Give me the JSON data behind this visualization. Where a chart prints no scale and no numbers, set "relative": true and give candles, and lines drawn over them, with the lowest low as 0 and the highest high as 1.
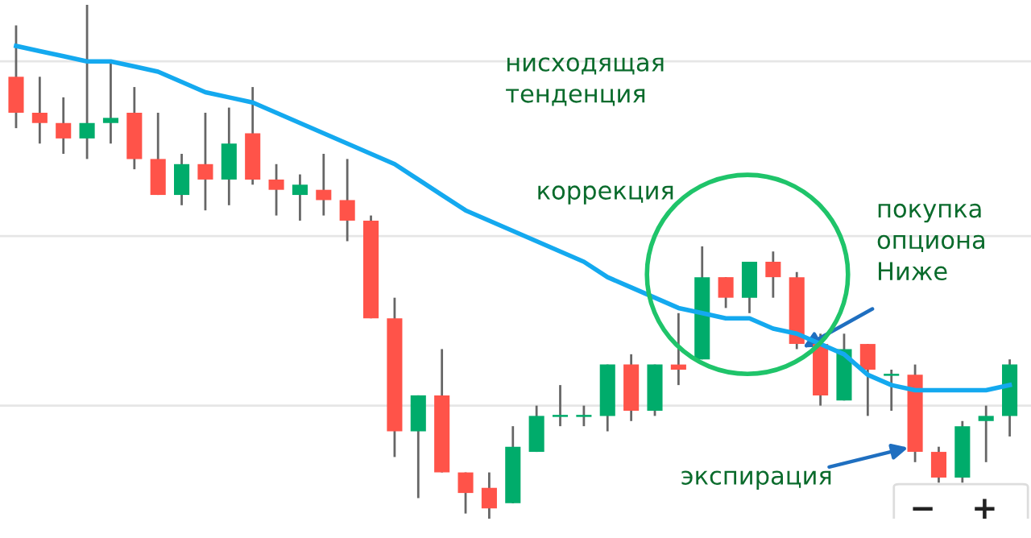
{
  "chart_data": {
    "type": "candlestick",
    "relative": true,
    "grid": true,
    "categories": [
      null,
      null,
      null,
      null,
      null,
      null,
      null,
      null,
      null,
      null,
      null,
      null,
      null,
      null,
      null,
      null,
      null,
      null,
      null,
      null,
      null,
      null,
      null,
      null,
      null,
      null,
      null,
      null,
      null,
      null,
      null,
      null,
      null,
      null,
      null,
      null,
      null,
      null,
      null,
      null,
      null,
      null,
      null
    ],
    "ohlc": [
      [
        0.86,
        0.96,
        0.76,
        0.79
      ],
      [
        0.79,
        0.86,
        0.73,
        0.77
      ],
      [
        0.77,
        0.82,
        0.71,
        0.74
      ],
      [
        0.74,
        1.0,
        0.7,
        0.77
      ],
      [
        0.77,
        0.89,
        0.73,
        0.78
      ],
      [
        0.79,
        0.84,
        0.68,
        0.7
      ],
      [
        0.7,
        0.79,
        0.63,
        0.63
      ],
      [
        0.63,
        0.71,
        0.61,
        0.69
      ],
      [
        0.69,
        0.79,
        0.6,
        0.66
      ],
      [
        0.66,
        0.8,
        0.61,
        0.73
      ],
      [
        0.75,
        0.84,
        0.65,
        0.66
      ],
      [
        0.66,
        0.69,
        0.59,
        0.64
      ],
      [
        0.63,
        0.67,
        0.58,
        0.65
      ],
      [
        0.64,
        0.71,
        0.59,
        0.62
      ],
      [
        0.62,
        0.7,
        0.54,
        0.58
      ],
      [
        0.58,
        0.59,
        0.39,
        0.39
      ],
      [
        0.39,
        0.43,
        0.12,
        0.17
      ],
      [
        0.17,
        0.24,
        0.04,
        0.24
      ],
      [
        0.24,
        0.33,
        0.09,
        0.09
      ],
      [
        0.09,
        0.09,
        0.01,
        0.05
      ],
      [
        0.06,
        0.09,
        0.0,
        0.02
      ],
      [
        0.03,
        0.18,
        0.03,
        0.14
      ],
      [
        0.13,
        0.22,
        0.13,
        0.2
      ],
      [
        0.2,
        0.26,
        0.18,
        0.2
      ],
      [
        0.2,
        0.22,
        0.18,
        0.2
      ],
      [
        0.2,
        0.3,
        0.17,
        0.3
      ],
      [
        0.3,
        0.32,
        0.19,
        0.21
      ],
      [
        0.21,
        0.3,
        0.2,
        0.3
      ],
      [
        0.3,
        0.4,
        0.26,
        0.29
      ],
      [
        0.31,
        0.53,
        0.31,
        0.47
      ],
      [
        0.47,
        0.47,
        0.41,
        0.43
      ],
      [
        0.43,
        0.5,
        0.4,
        0.5
      ],
      [
        0.5,
        0.52,
        0.43,
        0.47
      ],
      [
        0.47,
        0.48,
        0.33,
        0.34
      ],
      [
        0.34,
        0.36,
        0.22,
        0.24
      ],
      [
        0.23,
        0.36,
        0.23,
        0.33
      ],
      [
        0.34,
        0.34,
        0.2,
        0.29
      ],
      [
        0.28,
        0.29,
        0.21,
        0.28
      ],
      [
        0.28,
        0.3,
        0.11,
        0.13
      ],
      [
        0.13,
        0.14,
        0.07,
        0.08
      ],
      [
        0.08,
        0.19,
        0.07,
        0.18
      ],
      [
        0.19,
        0.22,
        0.11,
        0.2
      ],
      [
        0.2,
        0.31,
        0.16,
        0.3
      ]
    ],
    "series": [
      {
        "type": "line",
        "color": "#14a9ef",
        "values": [
          0.92,
          0.91,
          0.9,
          0.89,
          0.89,
          0.88,
          0.87,
          0.85,
          0.83,
          0.82,
          0.81,
          0.79,
          0.77,
          0.75,
          0.73,
          0.71,
          0.69,
          0.66,
          0.63,
          0.6,
          0.58,
          0.56,
          0.54,
          0.52,
          0.5,
          0.47,
          0.45,
          0.43,
          0.41,
          0.4,
          0.39,
          0.39,
          0.37,
          0.36,
          0.34,
          0.32,
          0.28,
          0.26,
          0.25,
          0.25,
          0.25,
          0.25,
          0.26
        ]
      }
    ],
    "annotations": [
      "нисходящая\nтенденция",
      "коррекция",
      "покупка\nопциона\nНиже",
      "экспирация",
      "−",
      "+"
    ]
  }
}
